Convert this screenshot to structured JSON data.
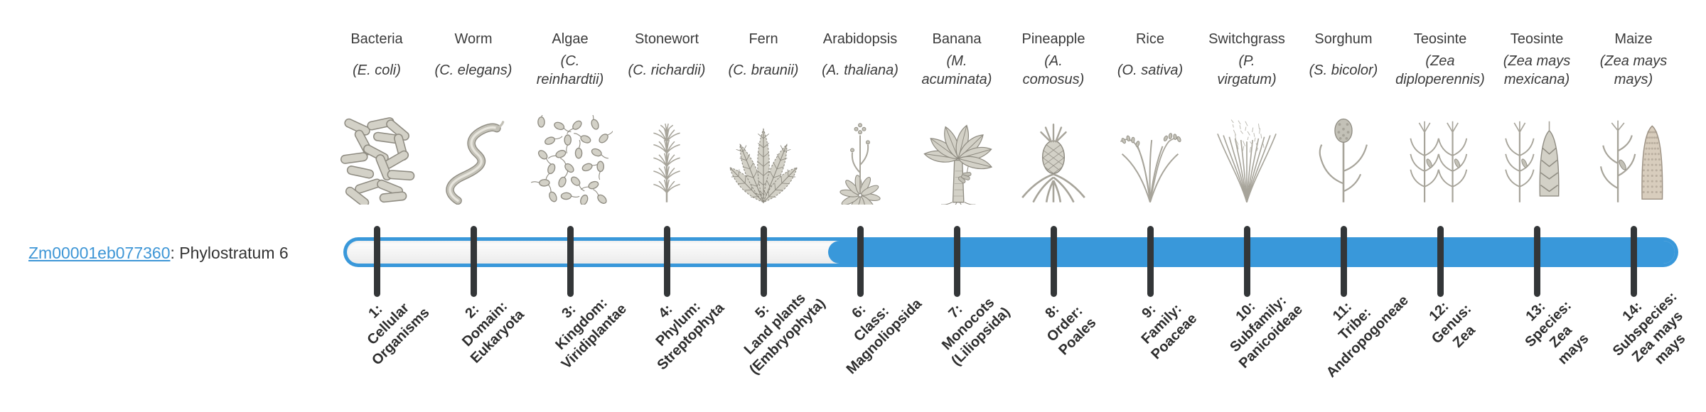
{
  "gene": {
    "id": "Zm00001eb077360",
    "label_suffix": ": Phylostratum 6",
    "phylostratum": 6
  },
  "bar": {
    "total_strata": 14,
    "filled_from_stratum": 6,
    "filled_to_stratum": 14
  },
  "colors": {
    "accent": "#3998DA",
    "tick": "#333638",
    "link": "#3E96D6"
  },
  "columns": [
    {
      "name": "Bacteria",
      "sci": "(E. coli)",
      "icon": "bacteria-icon",
      "stratum": "1:\nCellular\nOrganisms"
    },
    {
      "name": "Worm",
      "sci": "(C. elegans)",
      "icon": "worm-icon",
      "stratum": "2:\nDomain:\nEukaryota"
    },
    {
      "name": "Algae",
      "sci": "(C.\nreinhardtii)",
      "icon": "algae-icon",
      "stratum": "3:\nKingdom:\nViridiplantae"
    },
    {
      "name": "Stonewort",
      "sci": "(C. richardii)",
      "icon": "stonewort-icon",
      "stratum": "4:\nPhylum:\nStreptophyta"
    },
    {
      "name": "Fern",
      "sci": "(C. braunii)",
      "icon": "fern-icon",
      "stratum": "5:\nLand plants\n(Embryophyta)"
    },
    {
      "name": "Arabidopsis",
      "sci": "(A. thaliana)",
      "icon": "arabidopsis-icon",
      "stratum": "6:\nClass:\nMagnoliopsida"
    },
    {
      "name": "Banana",
      "sci": "(M.\nacuminata)",
      "icon": "banana-icon",
      "stratum": "7:\nMonocots\n(Liliopsida)"
    },
    {
      "name": "Pineapple",
      "sci": "(A.\ncomosus)",
      "icon": "pineapple-icon",
      "stratum": "8:\nOrder:\nPoales"
    },
    {
      "name": "Rice",
      "sci": "(O. sativa)",
      "icon": "rice-icon",
      "stratum": "9:\nFamily:\nPoaceae"
    },
    {
      "name": "Switchgrass",
      "sci": "(P.\nvirgatum)",
      "icon": "switchgrass-icon",
      "stratum": "10:\nSubfamily:\nPanicoideae"
    },
    {
      "name": "Sorghum",
      "sci": "(S. bicolor)",
      "icon": "sorghum-icon",
      "stratum": "11:\nTribe:\nAndropogoneae"
    },
    {
      "name": "Teosinte",
      "sci": "(Zea\ndiploperennis)",
      "icon": "teosinte-diploperennis-icon",
      "stratum": "12:\nGenus:\nZea"
    },
    {
      "name": "Teosinte",
      "sci": "(Zea mays\nmexicana)",
      "icon": "teosinte-mexicana-icon",
      "stratum": "13:\nSpecies:\nZea\nmays"
    },
    {
      "name": "Maize",
      "sci": "(Zea mays\nmays)",
      "icon": "maize-icon",
      "stratum": "14:\nSubspecies:\nZea mays\nmays"
    }
  ]
}
